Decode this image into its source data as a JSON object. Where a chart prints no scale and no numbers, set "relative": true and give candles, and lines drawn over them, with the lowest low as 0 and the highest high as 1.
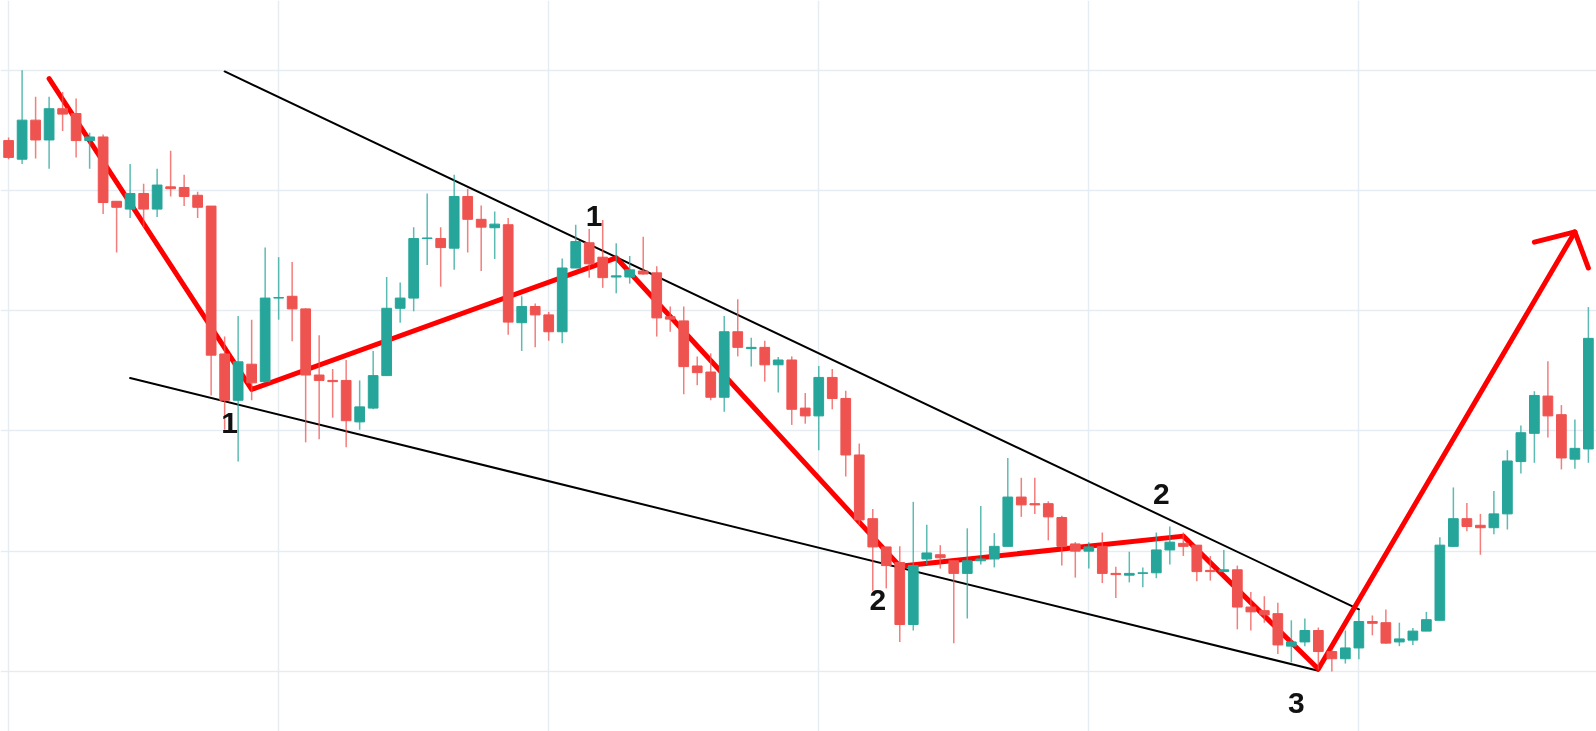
{
  "chart_data": {
    "type": "candlestick",
    "relative": true,
    "grid": true,
    "categories": [
      null,
      null,
      null,
      null,
      null,
      null,
      null,
      null,
      null,
      null,
      null,
      null,
      null,
      null,
      null,
      null,
      null,
      null,
      null,
      null,
      null,
      null,
      null,
      null,
      null,
      null,
      null,
      null,
      null,
      null,
      null,
      null,
      null,
      null,
      null,
      null,
      null,
      null,
      null,
      null,
      null,
      null,
      null,
      null,
      null,
      null,
      null,
      null,
      null,
      null,
      null,
      null,
      null,
      null,
      null,
      null,
      null,
      null,
      null,
      null,
      null,
      null,
      null,
      null,
      null,
      null,
      null,
      null,
      null,
      null,
      null,
      null,
      null,
      null,
      null,
      null,
      null,
      null,
      null,
      null,
      null,
      null,
      null,
      null,
      null,
      null,
      null,
      null,
      null,
      null,
      null,
      null,
      null,
      null,
      null,
      null,
      null,
      null,
      null,
      null,
      null,
      null,
      null,
      null,
      null,
      null,
      null,
      null,
      null,
      null,
      null,
      null,
      null,
      null,
      null,
      null,
      null,
      null
    ],
    "ohlc": [
      [
        0.883,
        0.888,
        0.852,
        0.855
      ],
      [
        0.852,
        1.0,
        0.844,
        0.917
      ],
      [
        0.917,
        0.956,
        0.853,
        0.884
      ],
      [
        0.884,
        0.956,
        0.836,
        0.936
      ],
      [
        0.936,
        0.964,
        0.899,
        0.927
      ],
      [
        0.928,
        0.953,
        0.855,
        0.883
      ],
      [
        0.883,
        0.896,
        0.836,
        0.889
      ],
      [
        0.889,
        0.893,
        0.761,
        0.78
      ],
      [
        0.782,
        0.782,
        0.697,
        0.772
      ],
      [
        0.769,
        0.844,
        0.754,
        0.795
      ],
      [
        0.795,
        0.811,
        0.738,
        0.769
      ],
      [
        0.769,
        0.836,
        0.756,
        0.809
      ],
      [
        0.806,
        0.866,
        0.79,
        0.803
      ],
      [
        0.805,
        0.826,
        0.774,
        0.79
      ],
      [
        0.792,
        0.798,
        0.754,
        0.772
      ],
      [
        0.774,
        0.774,
        0.459,
        0.526
      ],
      [
        0.528,
        0.557,
        0.402,
        0.451
      ],
      [
        0.451,
        0.591,
        0.349,
        0.515
      ],
      [
        0.511,
        0.585,
        0.451,
        0.48
      ],
      [
        0.482,
        0.705,
        0.48,
        0.621
      ],
      [
        0.621,
        0.689,
        0.585,
        0.622
      ],
      [
        0.624,
        0.681,
        0.549,
        0.603
      ],
      [
        0.603,
        0.604,
        0.381,
        0.493
      ],
      [
        0.493,
        0.559,
        0.386,
        0.484
      ],
      [
        0.484,
        0.503,
        0.422,
        0.482
      ],
      [
        0.484,
        0.518,
        0.373,
        0.417
      ],
      [
        0.415,
        0.484,
        0.402,
        0.44
      ],
      [
        0.438,
        0.533,
        0.436,
        0.492
      ],
      [
        0.492,
        0.656,
        0.492,
        0.604
      ],
      [
        0.604,
        0.647,
        0.58,
        0.621
      ],
      [
        0.621,
        0.739,
        0.599,
        0.72
      ],
      [
        0.72,
        0.795,
        0.676,
        0.721
      ],
      [
        0.72,
        0.739,
        0.64,
        0.705
      ],
      [
        0.704,
        0.826,
        0.668,
        0.79
      ],
      [
        0.79,
        0.803,
        0.697,
        0.752
      ],
      [
        0.752,
        0.775,
        0.666,
        0.739
      ],
      [
        0.738,
        0.765,
        0.686,
        0.744
      ],
      [
        0.743,
        0.754,
        0.56,
        0.581
      ],
      [
        0.58,
        0.624,
        0.533,
        0.607
      ],
      [
        0.607,
        0.612,
        0.539,
        0.593
      ],
      [
        0.593,
        0.598,
        0.55,
        0.565
      ],
      [
        0.565,
        0.687,
        0.546,
        0.671
      ],
      [
        0.671,
        0.743,
        0.671,
        0.715
      ],
      [
        0.713,
        0.736,
        0.655,
        0.678
      ],
      [
        0.689,
        0.751,
        0.638,
        0.655
      ],
      [
        0.656,
        0.712,
        0.629,
        0.658
      ],
      [
        0.656,
        0.691,
        0.645,
        0.668
      ],
      [
        0.666,
        0.723,
        0.66,
        0.661
      ],
      [
        0.663,
        0.674,
        0.557,
        0.588
      ],
      [
        0.59,
        0.607,
        0.565,
        0.586
      ],
      [
        0.583,
        0.607,
        0.461,
        0.507
      ],
      [
        0.508,
        0.524,
        0.476,
        0.497
      ],
      [
        0.498,
        0.529,
        0.451,
        0.456
      ],
      [
        0.456,
        0.591,
        0.432,
        0.565
      ],
      [
        0.565,
        0.619,
        0.524,
        0.539
      ],
      [
        0.537,
        0.555,
        0.507,
        0.539
      ],
      [
        0.539,
        0.55,
        0.482,
        0.51
      ],
      [
        0.51,
        0.523,
        0.464,
        0.518
      ],
      [
        0.518,
        0.524,
        0.41,
        0.436
      ],
      [
        0.438,
        0.463,
        0.412,
        0.425
      ],
      [
        0.425,
        0.508,
        0.368,
        0.489
      ],
      [
        0.489,
        0.503,
        0.436,
        0.454
      ],
      [
        0.454,
        0.467,
        0.324,
        0.36
      ],
      [
        0.36,
        0.379,
        0.244,
        0.252
      ],
      [
        0.254,
        0.27,
        0.134,
        0.207
      ],
      [
        0.207,
        0.207,
        0.138,
        0.176
      ],
      [
        0.181,
        0.208,
        0.049,
        0.078
      ],
      [
        0.078,
        0.282,
        0.068,
        0.176
      ],
      [
        0.187,
        0.244,
        0.178,
        0.197
      ],
      [
        0.194,
        0.21,
        0.171,
        0.189
      ],
      [
        0.184,
        0.184,
        0.047,
        0.163
      ],
      [
        0.163,
        0.238,
        0.088,
        0.184
      ],
      [
        0.184,
        0.275,
        0.178,
        0.187
      ],
      [
        0.187,
        0.23,
        0.173,
        0.208
      ],
      [
        0.208,
        0.355,
        0.208,
        0.29
      ],
      [
        0.29,
        0.322,
        0.257,
        0.277
      ],
      [
        0.279,
        0.322,
        0.262,
        0.277
      ],
      [
        0.279,
        0.283,
        0.218,
        0.257
      ],
      [
        0.256,
        0.259,
        0.176,
        0.208
      ],
      [
        0.212,
        0.215,
        0.156,
        0.2
      ],
      [
        0.2,
        0.215,
        0.171,
        0.207
      ],
      [
        0.208,
        0.231,
        0.147,
        0.163
      ],
      [
        0.163,
        0.174,
        0.122,
        0.161
      ],
      [
        0.16,
        0.199,
        0.148,
        0.163
      ],
      [
        0.163,
        0.173,
        0.14,
        0.164
      ],
      [
        0.164,
        0.231,
        0.155,
        0.202
      ],
      [
        0.202,
        0.241,
        0.178,
        0.215
      ],
      [
        0.213,
        0.231,
        0.192,
        0.208
      ],
      [
        0.21,
        0.21,
        0.15,
        0.166
      ],
      [
        0.168,
        0.192,
        0.151,
        0.166
      ],
      [
        0.166,
        0.202,
        0.166,
        0.169
      ],
      [
        0.169,
        0.176,
        0.07,
        0.107
      ],
      [
        0.107,
        0.132,
        0.068,
        0.099
      ],
      [
        0.101,
        0.125,
        0.081,
        0.094
      ],
      [
        0.096,
        0.114,
        0.029,
        0.044
      ],
      [
        0.042,
        0.085,
        0.015,
        0.049
      ],
      [
        0.049,
        0.088,
        0.042,
        0.068
      ],
      [
        0.068,
        0.073,
        0.003,
        0.033
      ],
      [
        0.033,
        0.036,
        0.0,
        0.021
      ],
      [
        0.021,
        0.068,
        0.013,
        0.039
      ],
      [
        0.039,
        0.101,
        0.02,
        0.083
      ],
      [
        0.083,
        0.093,
        0.06,
        0.08
      ],
      [
        0.081,
        0.103,
        0.046,
        0.047
      ],
      [
        0.049,
        0.081,
        0.042,
        0.054
      ],
      [
        0.052,
        0.072,
        0.044,
        0.067
      ],
      [
        0.067,
        0.099,
        0.067,
        0.086
      ],
      [
        0.085,
        0.223,
        0.085,
        0.21
      ],
      [
        0.208,
        0.306,
        0.207,
        0.254
      ],
      [
        0.254,
        0.28,
        0.233,
        0.241
      ],
      [
        0.243,
        0.262,
        0.194,
        0.239
      ],
      [
        0.239,
        0.3,
        0.228,
        0.262
      ],
      [
        0.262,
        0.368,
        0.236,
        0.35
      ],
      [
        0.349,
        0.409,
        0.329,
        0.397
      ],
      [
        0.396,
        0.466,
        0.347,
        0.459
      ],
      [
        0.458,
        0.516,
        0.389,
        0.425
      ],
      [
        0.427,
        0.443,
        0.336,
        0.355
      ],
      [
        0.353,
        0.419,
        0.337,
        0.371
      ],
      [
        0.37,
        0.606,
        0.347,
        0.554
      ]
    ],
    "colors": [
      "#ef5350",
      "#26a69a",
      "#ef5350",
      "#26a69a",
      "#ef5350",
      "#ef5350",
      "#26a69a",
      "#ef5350",
      "#ef5350",
      "#26a69a",
      "#ef5350",
      "#26a69a",
      "#ef5350",
      "#ef5350",
      "#ef5350",
      "#ef5350",
      "#ef5350",
      "#26a69a",
      "#ef5350",
      "#26a69a",
      "#26a69a",
      "#ef5350",
      "#ef5350",
      "#ef5350",
      "#ef5350",
      "#ef5350",
      "#26a69a",
      "#26a69a",
      "#26a69a",
      "#26a69a",
      "#26a69a",
      "#26a69a",
      "#ef5350",
      "#26a69a",
      "#ef5350",
      "#ef5350",
      "#26a69a",
      "#ef5350",
      "#26a69a",
      "#ef5350",
      "#ef5350",
      "#26a69a",
      "#26a69a",
      "#ef5350",
      "#ef5350",
      "#26a69a",
      "#26a69a",
      "#ef5350",
      "#ef5350",
      "#ef5350",
      "#ef5350",
      "#ef5350",
      "#ef5350",
      "#26a69a",
      "#ef5350",
      "#26a69a",
      "#ef5350",
      "#26a69a",
      "#ef5350",
      "#ef5350",
      "#26a69a",
      "#ef5350",
      "#ef5350",
      "#ef5350",
      "#ef5350",
      "#ef5350",
      "#ef5350",
      "#26a69a",
      "#26a69a",
      "#ef5350",
      "#ef5350",
      "#26a69a",
      "#26a69a",
      "#26a69a",
      "#26a69a",
      "#ef5350",
      "#ef5350",
      "#ef5350",
      "#ef5350",
      "#ef5350",
      "#26a69a",
      "#ef5350",
      "#ef5350",
      "#26a69a",
      "#26a69a",
      "#26a69a",
      "#26a69a",
      "#ef5350",
      "#ef5350",
      "#ef5350",
      "#26a69a",
      "#ef5350",
      "#ef5350",
      "#ef5350",
      "#ef5350",
      "#26a69a",
      "#26a69a",
      "#ef5350",
      "#ef5350",
      "#26a69a",
      "#26a69a",
      "#ef5350",
      "#ef5350",
      "#26a69a",
      "#26a69a",
      "#26a69a",
      "#26a69a",
      "#26a69a",
      "#ef5350",
      "#ef5350",
      "#26a69a",
      "#26a69a",
      "#26a69a",
      "#26a69a",
      "#ef5350",
      "#ef5350",
      "#26a69a",
      "#26a69a"
    ],
    "series": [
      {
        "type": "line",
        "color": "#000000",
        "values": [
          null,
          null,
          null,
          null,
          null,
          null,
          null,
          null,
          null,
          null,
          null,
          null,
          null,
          null,
          null,
          null,
          0.998,
          null,
          null,
          null,
          null,
          null,
          null,
          null,
          null,
          null,
          null,
          null,
          null,
          null,
          null,
          null,
          null,
          null,
          null,
          null,
          null,
          null,
          null,
          null,
          null,
          null,
          null,
          null,
          null,
          null,
          null,
          null,
          null,
          null,
          null,
          null,
          null,
          null,
          null,
          null,
          null,
          null,
          null,
          null,
          null,
          null,
          null,
          null,
          null,
          null,
          null,
          null,
          null,
          null,
          null,
          null,
          null,
          null,
          null,
          null,
          null,
          null,
          null,
          null,
          null,
          null,
          null,
          null,
          null,
          null,
          null,
          null,
          null,
          null,
          null,
          null,
          null,
          null,
          null,
          null,
          null,
          null,
          null,
          null,
          0.103,
          null,
          null,
          null,
          null,
          null,
          null,
          null,
          null,
          null,
          null,
          null,
          null,
          null,
          null,
          null,
          null,
          null
        ]
      },
      {
        "type": "line",
        "color": "#000000",
        "values": [
          null,
          null,
          null,
          null,
          null,
          null,
          null,
          null,
          null,
          0.488,
          null,
          null,
          null,
          null,
          null,
          null,
          null,
          null,
          null,
          null,
          null,
          null,
          null,
          null,
          null,
          null,
          null,
          null,
          null,
          null,
          null,
          null,
          null,
          null,
          null,
          null,
          null,
          null,
          null,
          null,
          null,
          null,
          null,
          null,
          null,
          null,
          null,
          null,
          null,
          null,
          null,
          null,
          null,
          null,
          null,
          null,
          null,
          null,
          null,
          null,
          null,
          null,
          null,
          null,
          null,
          null,
          null,
          null,
          null,
          null,
          null,
          null,
          null,
          null,
          null,
          null,
          null,
          null,
          null,
          null,
          null,
          null,
          null,
          null,
          null,
          null,
          null,
          null,
          null,
          null,
          null,
          null,
          null,
          null,
          null,
          null,
          null,
          0.001,
          null,
          null,
          null,
          null,
          null,
          null,
          null,
          null,
          null,
          null,
          null,
          null,
          null,
          null,
          null,
          null,
          null,
          null,
          null,
          null
        ]
      },
      {
        "type": "line",
        "color": "#ff0000",
        "values": [
          null,
          null,
          null,
          0.986,
          null,
          null,
          null,
          null,
          null,
          null,
          null,
          null,
          null,
          null,
          null,
          null,
          null,
          null,
          0.469,
          null,
          null,
          null,
          null,
          null,
          null,
          null,
          null,
          null,
          null,
          null,
          null,
          null,
          null,
          null,
          null,
          null,
          null,
          null,
          null,
          null,
          null,
          null,
          null,
          null,
          null,
          0.688,
          null,
          null,
          null,
          null,
          null,
          null,
          null,
          null,
          null,
          null,
          null,
          null,
          null,
          null,
          null,
          null,
          null,
          null,
          null,
          null,
          0.175,
          null,
          null,
          null,
          null,
          null,
          null,
          null,
          null,
          null,
          null,
          null,
          null,
          null,
          null,
          null,
          null,
          null,
          null,
          null,
          null,
          0.225,
          null,
          null,
          null,
          null,
          null,
          null,
          null,
          null,
          null,
          0.004,
          null,
          null,
          null,
          null,
          null,
          null,
          null,
          null,
          null,
          null,
          null,
          null,
          null,
          null,
          null,
          null,
          null,
          null,
          0.731,
          null
        ]
      },
      {
        "type": "line",
        "color": "#ff0000",
        "values": [
          null,
          null,
          null,
          null,
          null,
          null,
          null,
          null,
          null,
          null,
          null,
          null,
          null,
          null,
          null,
          null,
          null,
          null,
          null,
          null,
          null,
          null,
          null,
          null,
          null,
          null,
          null,
          null,
          null,
          null,
          null,
          null,
          null,
          null,
          null,
          null,
          null,
          null,
          null,
          null,
          null,
          null,
          null,
          null,
          null,
          null,
          null,
          null,
          null,
          null,
          null,
          null,
          null,
          null,
          null,
          null,
          null,
          null,
          null,
          null,
          null,
          null,
          null,
          null,
          null,
          null,
          null,
          null,
          null,
          null,
          null,
          null,
          null,
          null,
          null,
          null,
          null,
          null,
          null,
          null,
          null,
          null,
          null,
          null,
          null,
          null,
          null,
          null,
          null,
          null,
          null,
          null,
          null,
          null,
          null,
          null,
          null,
          null,
          null,
          null,
          null,
          null,
          null,
          null,
          null,
          null,
          null,
          null,
          null,
          null,
          null,
          null,
          null,
          0.714,
          null,
          null,
          0.731,
          0.671
        ]
      }
    ],
    "annotations": [
      "1",
      "1",
      "2",
      "2",
      "3"
    ]
  }
}
